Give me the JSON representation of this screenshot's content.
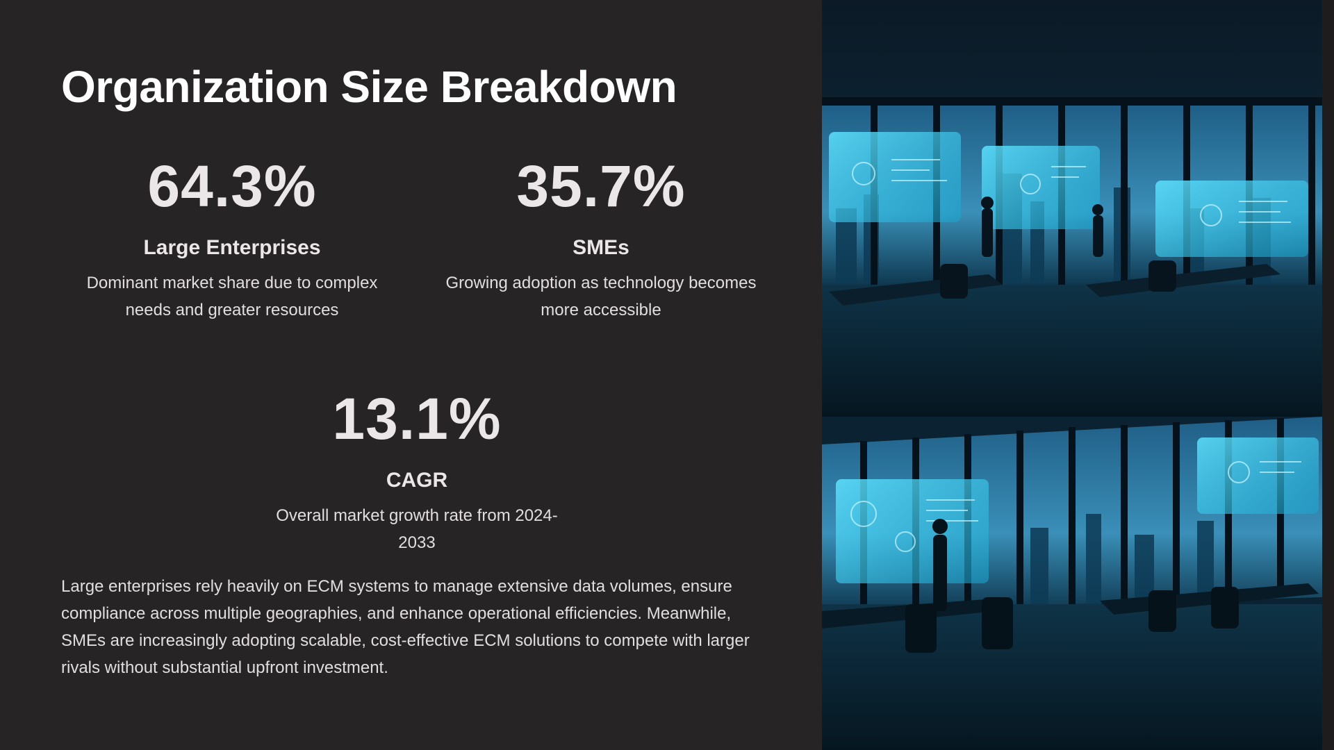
{
  "slide": {
    "title": "Organization Size Breakdown",
    "stats": [
      {
        "value": "64.3%",
        "label": "Large Enterprises",
        "description": "Dominant market share due to complex needs and greater resources"
      },
      {
        "value": "35.7%",
        "label": "SMEs",
        "description": "Growing adoption as technology becomes more accessible"
      },
      {
        "value": "13.1%",
        "label": "CAGR",
        "description": "Overall market growth rate from 2024-2033"
      }
    ],
    "body": "Large enterprises rely heavily on ECM systems to manage extensive data volumes, ensure compliance across multiple geographies, and enhance operational efficiencies. Meanwhile, SMEs are increasingly adopting scalable, cost-effective ECM solutions to compete with larger rivals without substantial upfront investment."
  },
  "colors": {
    "background": "#262425",
    "title": "#ffffff",
    "text": "#ece8e9",
    "photo_accent": "#2fb8d8"
  },
  "image": {
    "icon": "office-photo-icon"
  }
}
